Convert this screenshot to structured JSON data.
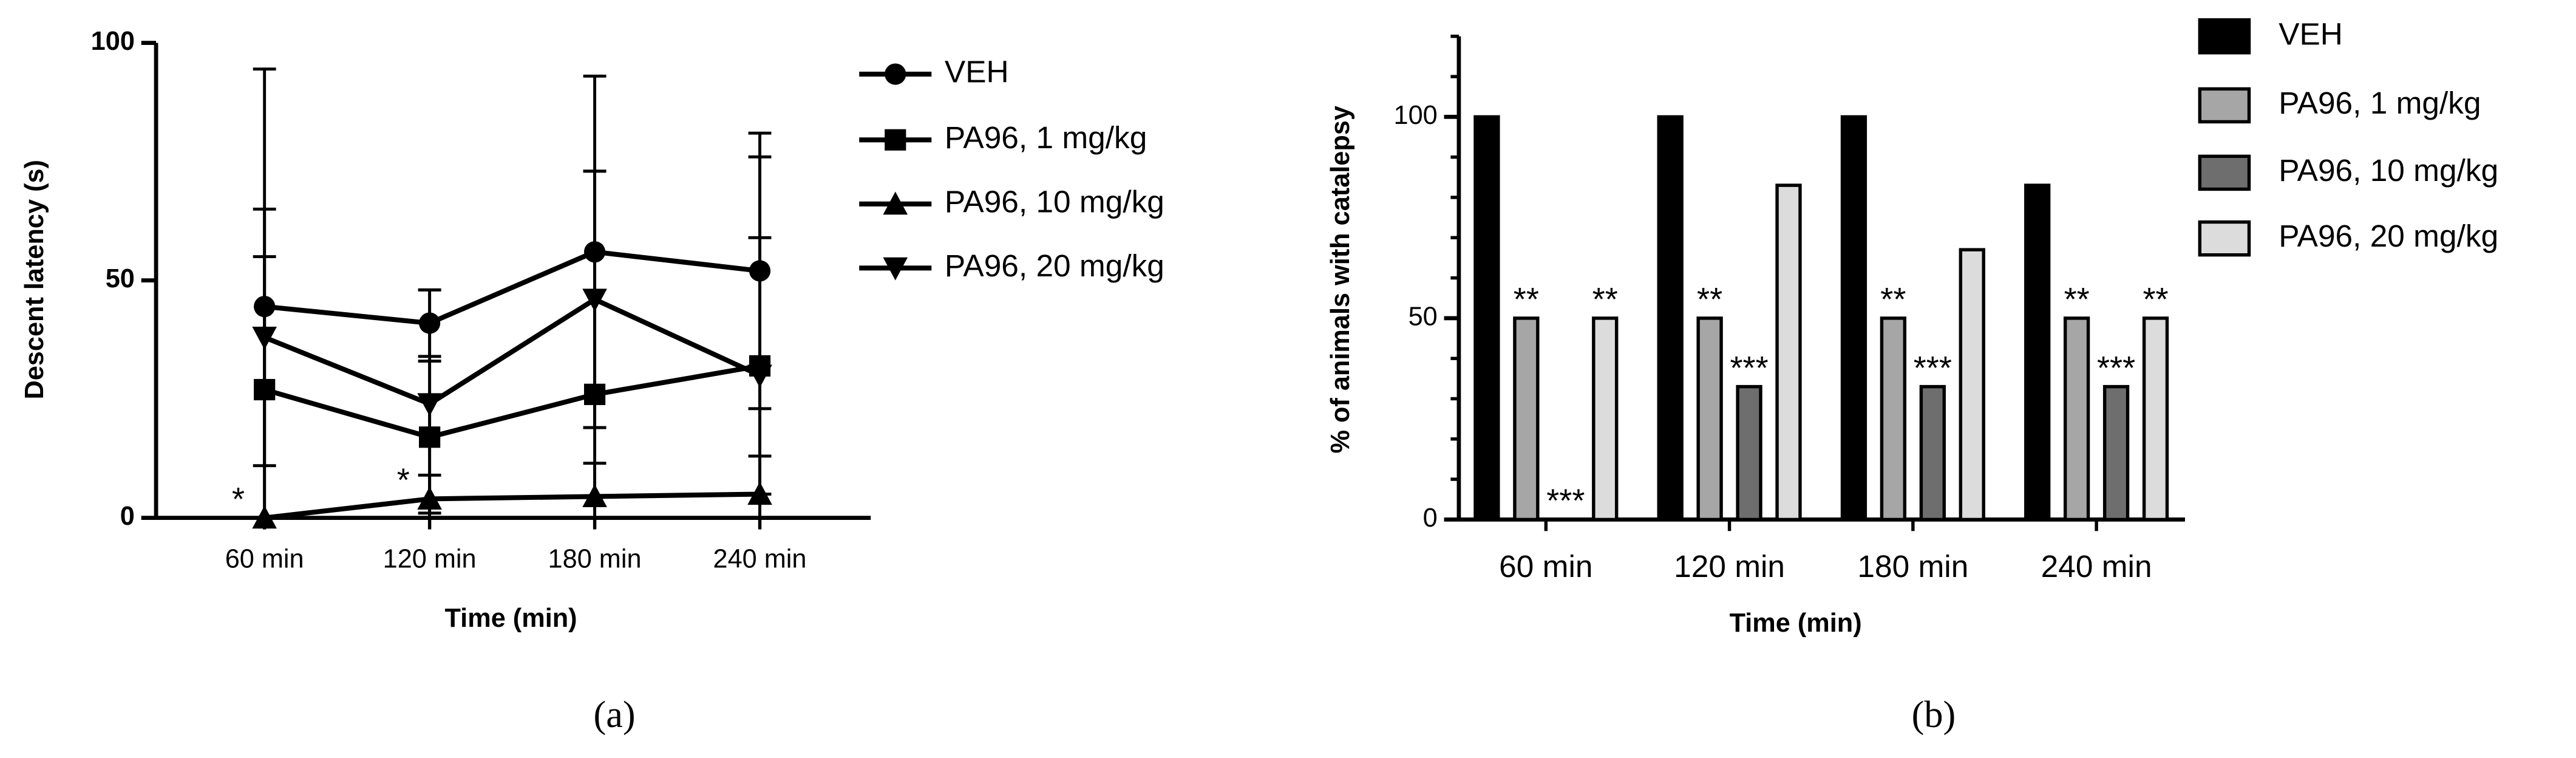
{
  "chart_data": [
    {
      "type": "line",
      "label": "(a)",
      "ylabel": "Descent latency (s)",
      "xlabel": "Time (min)",
      "categories": [
        "60 min",
        "120 min",
        "180 min",
        "240 min"
      ],
      "ylim": [
        0,
        100
      ],
      "yticks": [
        0,
        50,
        100
      ],
      "series": [
        {
          "name": "VEH",
          "color": "#000000",
          "marker": "circle",
          "values": [
            44.5,
            41,
            56,
            52
          ],
          "errors": [
            50,
            7,
            37,
            29
          ]
        },
        {
          "name": "PA96, 1 mg/kg",
          "color": "#000000",
          "marker": "square",
          "values": [
            27,
            17,
            26,
            32
          ],
          "errors": [
            28,
            16,
            47,
            27
          ]
        },
        {
          "name": "PA96, 10 mg/kg",
          "color": "#000000",
          "marker": "triangle-up",
          "values": [
            0,
            4,
            4.5,
            5
          ],
          "errors": [
            0,
            5,
            7,
            8
          ],
          "annotations": [
            "*",
            "*",
            null,
            null
          ]
        },
        {
          "name": "PA96, 20 mg/kg",
          "color": "#000000",
          "marker": "triangle-down",
          "values": [
            38,
            24,
            46,
            30
          ],
          "errors": [
            27,
            24,
            27,
            46
          ]
        }
      ]
    },
    {
      "type": "bar",
      "label": "(b)",
      "ylabel": "% of animals with catalepsy",
      "xlabel": "Time (min)",
      "categories": [
        "60 min",
        "120 min",
        "180 min",
        "240 min"
      ],
      "ylim": [
        0,
        120
      ],
      "yticks": [
        0,
        50,
        100
      ],
      "minor_yticks": [
        10,
        20,
        30,
        40,
        60,
        70,
        80,
        90,
        110,
        120
      ],
      "series": [
        {
          "name": "VEH",
          "color": "#000000",
          "values": [
            100,
            100,
            100,
            83
          ]
        },
        {
          "name": "PA96, 1 mg/kg",
          "color": "#a6a6a6",
          "values": [
            50,
            50,
            50,
            50
          ],
          "annotations": [
            "**",
            "**",
            "**",
            "**"
          ]
        },
        {
          "name": "PA96, 10 mg/kg",
          "color": "#6e6e6e",
          "values": [
            0,
            33,
            33,
            33
          ],
          "annotations": [
            "***",
            "***",
            "***",
            "***"
          ]
        },
        {
          "name": "PA96, 20 mg/kg",
          "color": "#dcdcdc",
          "values": [
            50,
            83,
            67,
            50
          ],
          "annotations": [
            "**",
            null,
            null,
            "**"
          ]
        }
      ]
    }
  ]
}
